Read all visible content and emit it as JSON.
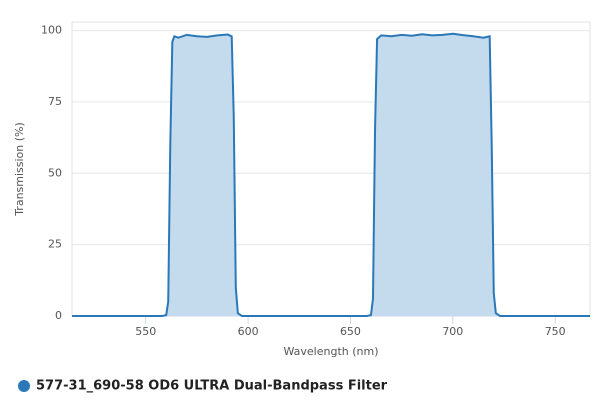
{
  "chart_data": {
    "type": "area",
    "x_label": "Wavelength (nm)",
    "y_label": "Transmission (%)",
    "x": [
      514,
      558,
      560,
      561,
      562,
      563,
      564,
      566,
      570,
      575,
      580,
      585,
      590,
      592,
      593,
      594,
      595,
      597,
      600,
      650,
      658,
      660,
      661,
      662,
      663,
      665,
      670,
      675,
      680,
      685,
      690,
      695,
      700,
      705,
      710,
      715,
      718,
      719,
      720,
      721,
      723,
      767
    ],
    "series": [
      {
        "name": "577-31_690-58 OD6 ULTRA Dual-Bandpass Filter",
        "color": "#2b78b8",
        "fill": "#c3dbed",
        "values": [
          0,
          0,
          0.3,
          5,
          60,
          96,
          98,
          97.5,
          98.5,
          98,
          97.8,
          98.3,
          98.6,
          98,
          70,
          10,
          1,
          0,
          0,
          0,
          0,
          0.3,
          6,
          65,
          97,
          98.3,
          98,
          98.5,
          98.2,
          98.7,
          98.3,
          98.5,
          98.9,
          98.4,
          98,
          97.5,
          98,
          60,
          8,
          1,
          0,
          0
        ]
      }
    ],
    "xlim": [
      514,
      767
    ],
    "xticks": [
      550,
      600,
      650,
      700,
      750
    ],
    "ylim": [
      0,
      103
    ],
    "yticks": [
      0,
      25,
      50,
      75,
      100
    ],
    "grid": true
  }
}
